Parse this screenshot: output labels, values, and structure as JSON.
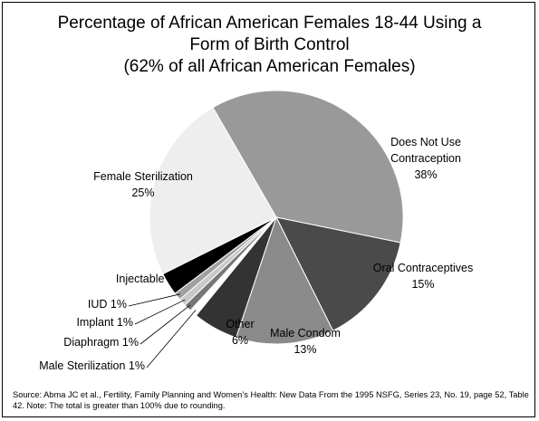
{
  "chart_data": {
    "type": "pie",
    "title": "Percentage of African American Females 18-44 Using a Form of Birth Control",
    "subtitle": "(62% of all African American Females)",
    "categories": [
      "Does Not Use Contraception",
      "Oral Contraceptives",
      "Male Condom",
      "Other",
      "Male Sterilization",
      "Diaphragm",
      "Implant",
      "IUD",
      "Injectable",
      "Female Sterilization"
    ],
    "values": [
      38,
      15,
      13,
      6,
      1,
      1,
      1,
      1,
      3,
      25
    ],
    "value_labels": [
      "38%",
      "15%",
      "13%",
      "6%",
      "1%",
      "1%",
      "1%",
      "1%",
      "3%",
      "25%"
    ],
    "colors": [
      "#999999",
      "#4a4a4a",
      "#8a8a8a",
      "#333333",
      "#ffffff",
      "#777777",
      "#c8c8c8",
      "#a0a0a0",
      "#000000",
      "#eeeeee"
    ],
    "source": "Source:  Abma JC et al., Fertility, Family Planning and Women’s Health: New Data From the 1995 NSFG, Series 23, No. 19, page 52, Table 42.  Note:  The total is greater than 100% due to rounding."
  }
}
